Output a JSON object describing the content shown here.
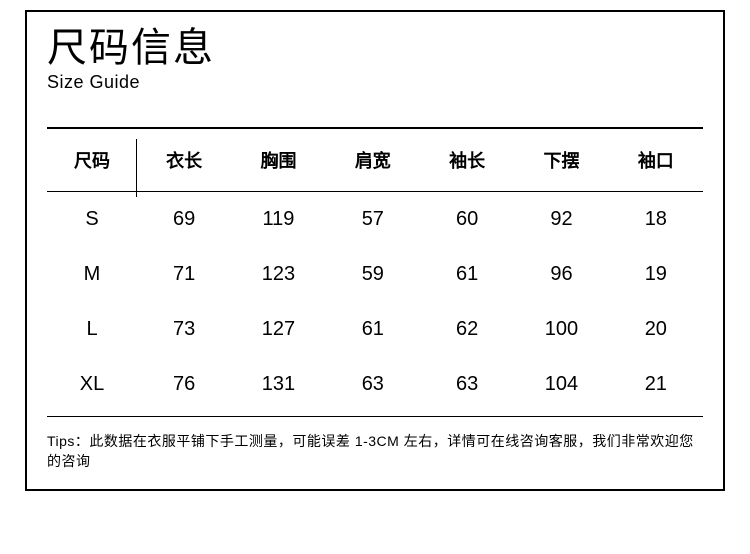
{
  "header": {
    "title_cn": "尺码信息",
    "title_en": "Size Guide"
  },
  "table": {
    "type": "table",
    "background_color": "#ffffff",
    "border_color": "#000000",
    "text_color": "#000000",
    "header_fontsize": 18,
    "cell_fontsize": 20,
    "columns": [
      "尺码",
      "衣长",
      "胸围",
      "肩宽",
      "袖长",
      "下摆",
      "袖口"
    ],
    "rows": [
      {
        "size": "S",
        "values": [
          "69",
          "119",
          "57",
          "60",
          "92",
          "18"
        ]
      },
      {
        "size": "M",
        "values": [
          "71",
          "123",
          "59",
          "61",
          "96",
          "19"
        ]
      },
      {
        "size": "L",
        "values": [
          "73",
          "127",
          "61",
          "62",
          "100",
          "20"
        ]
      },
      {
        "size": "XL",
        "values": [
          "76",
          "131",
          "63",
          "63",
          "104",
          "21"
        ]
      }
    ]
  },
  "tips": "Tips：此数据在衣服平铺下手工测量，可能误差 1-3CM 左右，详情可在线咨询客服，我们非常欢迎您的咨询"
}
